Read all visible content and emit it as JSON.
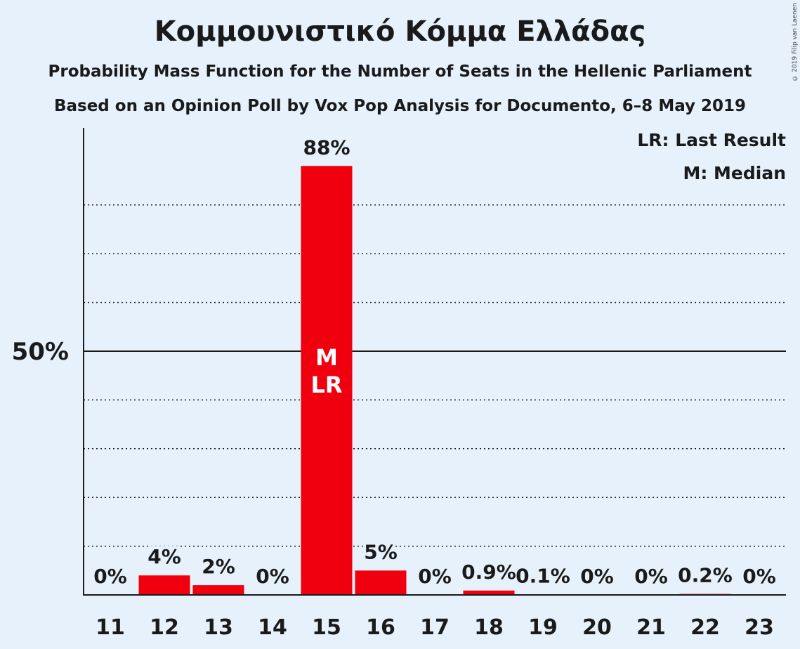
{
  "title": "Κομμουνιστικό Κόμμα Ελλάδας",
  "subtitle_1": "Probability Mass Function for the Number of Seats in the Hellenic Parliament",
  "subtitle_2": "Based on an Opinion Poll by Vox Pop Analysis for Documento, 6–8 May 2019",
  "copyright": "© 2019 Filip van Laenen",
  "legend": {
    "last_result": "LR: Last Result",
    "median": "M: Median"
  },
  "colors": {
    "bar": "#f0000e",
    "background": "#e6f1fb",
    "text": "#1a1a1a"
  },
  "chart_data": {
    "type": "bar",
    "categories": [
      "11",
      "12",
      "13",
      "14",
      "15",
      "16",
      "17",
      "18",
      "19",
      "20",
      "21",
      "22",
      "23"
    ],
    "values": [
      0,
      4,
      2,
      0,
      88,
      5,
      0,
      0.9,
      0.1,
      0,
      0,
      0.2,
      0
    ],
    "data_labels": [
      "0%",
      "4%",
      "2%",
      "0%",
      "88%",
      "5%",
      "0%",
      "0.9%",
      "0.1%",
      "0%",
      "0%",
      "0.2%",
      "0%"
    ],
    "ylim": [
      0,
      96
    ],
    "y_tick_label": "50%",
    "y_tick_value": 50,
    "dotted_gridlines": [
      10,
      20,
      30,
      40,
      60,
      70,
      80
    ],
    "markers": {
      "category": "15",
      "median": "M",
      "last_result": "LR"
    }
  }
}
